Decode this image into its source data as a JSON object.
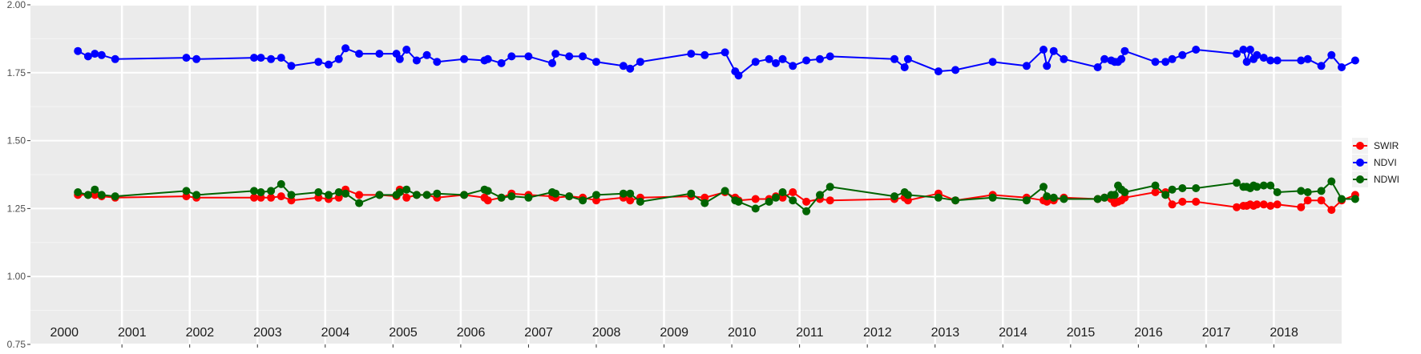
{
  "chart_data": {
    "type": "line",
    "x_unit": "decimal year",
    "ylim": [
      0.75,
      2.0
    ],
    "yticks": [
      0.75,
      1.0,
      1.25,
      1.5,
      1.75,
      2.0
    ],
    "ytick_labels": [
      "0.75",
      "1.00",
      "1.25",
      "1.50",
      "1.75",
      "2.00"
    ],
    "xlim": [
      1999.6,
      2018.95
    ],
    "year_boundaries": [
      2000.95,
      2001.95,
      2002.95,
      2003.95,
      2004.95,
      2005.95,
      2006.95,
      2007.95,
      2008.95,
      2009.95,
      2010.95,
      2011.95,
      2012.95,
      2013.95,
      2014.95,
      2015.95,
      2016.95,
      2017.95
    ],
    "year_labels": [
      {
        "label": "2000",
        "x": 2000.1
      },
      {
        "label": "2001",
        "x": 2001.1
      },
      {
        "label": "2002",
        "x": 2002.1
      },
      {
        "label": "2003",
        "x": 2003.1
      },
      {
        "label": "2004",
        "x": 2004.1
      },
      {
        "label": "2005",
        "x": 2005.1
      },
      {
        "label": "2006",
        "x": 2006.1
      },
      {
        "label": "2007",
        "x": 2007.1
      },
      {
        "label": "2008",
        "x": 2008.1
      },
      {
        "label": "2009",
        "x": 2009.1
      },
      {
        "label": "2010",
        "x": 2010.1
      },
      {
        "label": "2011",
        "x": 2011.1
      },
      {
        "label": "2012",
        "x": 2012.1
      },
      {
        "label": "2013",
        "x": 2013.1
      },
      {
        "label": "2014",
        "x": 2014.1
      },
      {
        "label": "2015",
        "x": 2015.1
      },
      {
        "label": "2016",
        "x": 2016.1
      },
      {
        "label": "2017",
        "x": 2017.1
      },
      {
        "label": "2018",
        "x": 2018.1
      }
    ],
    "grid": true,
    "legend_position": "right",
    "series": [
      {
        "name": "SWIR",
        "color": "#ff0000",
        "points": [
          [
            2000.3,
            1.3
          ],
          [
            2000.45,
            1.3
          ],
          [
            2000.55,
            1.3
          ],
          [
            2000.65,
            1.295
          ],
          [
            2000.85,
            1.29
          ],
          [
            2001.9,
            1.295
          ],
          [
            2002.05,
            1.29
          ],
          [
            2002.9,
            1.29
          ],
          [
            2003.0,
            1.29
          ],
          [
            2003.15,
            1.29
          ],
          [
            2003.3,
            1.295
          ],
          [
            2003.45,
            1.28
          ],
          [
            2003.85,
            1.29
          ],
          [
            2004.0,
            1.285
          ],
          [
            2004.15,
            1.29
          ],
          [
            2004.25,
            1.32
          ],
          [
            2004.45,
            1.3
          ],
          [
            2004.75,
            1.3
          ],
          [
            2005.0,
            1.295
          ],
          [
            2005.05,
            1.32
          ],
          [
            2005.15,
            1.29
          ],
          [
            2005.3,
            1.3
          ],
          [
            2005.45,
            1.3
          ],
          [
            2005.6,
            1.29
          ],
          [
            2006.0,
            1.3
          ],
          [
            2006.3,
            1.29
          ],
          [
            2006.35,
            1.28
          ],
          [
            2006.55,
            1.29
          ],
          [
            2006.7,
            1.305
          ],
          [
            2006.95,
            1.3
          ],
          [
            2007.3,
            1.295
          ],
          [
            2007.35,
            1.29
          ],
          [
            2007.55,
            1.295
          ],
          [
            2007.75,
            1.29
          ],
          [
            2007.95,
            1.28
          ],
          [
            2008.35,
            1.29
          ],
          [
            2008.45,
            1.28
          ],
          [
            2008.6,
            1.29
          ],
          [
            2009.35,
            1.295
          ],
          [
            2009.55,
            1.29
          ],
          [
            2009.85,
            1.31
          ],
          [
            2010.0,
            1.29
          ],
          [
            2010.05,
            1.28
          ],
          [
            2010.3,
            1.285
          ],
          [
            2010.5,
            1.285
          ],
          [
            2010.6,
            1.295
          ],
          [
            2010.7,
            1.29
          ],
          [
            2010.85,
            1.31
          ],
          [
            2011.05,
            1.275
          ],
          [
            2011.25,
            1.285
          ],
          [
            2011.4,
            1.28
          ],
          [
            2012.35,
            1.285
          ],
          [
            2012.5,
            1.29
          ],
          [
            2012.55,
            1.28
          ],
          [
            2013.0,
            1.305
          ],
          [
            2013.25,
            1.28
          ],
          [
            2013.8,
            1.3
          ],
          [
            2014.3,
            1.29
          ],
          [
            2014.55,
            1.28
          ],
          [
            2014.6,
            1.275
          ],
          [
            2014.7,
            1.28
          ],
          [
            2014.85,
            1.29
          ],
          [
            2015.35,
            1.285
          ],
          [
            2015.45,
            1.29
          ],
          [
            2015.55,
            1.285
          ],
          [
            2015.6,
            1.27
          ],
          [
            2015.65,
            1.275
          ],
          [
            2015.7,
            1.28
          ],
          [
            2015.75,
            1.29
          ],
          [
            2016.2,
            1.31
          ],
          [
            2016.35,
            1.31
          ],
          [
            2016.45,
            1.265
          ],
          [
            2016.6,
            1.275
          ],
          [
            2016.8,
            1.275
          ],
          [
            2017.4,
            1.255
          ],
          [
            2017.5,
            1.26
          ],
          [
            2017.55,
            1.26
          ],
          [
            2017.6,
            1.265
          ],
          [
            2017.65,
            1.26
          ],
          [
            2017.7,
            1.265
          ],
          [
            2017.8,
            1.265
          ],
          [
            2017.9,
            1.26
          ],
          [
            2018.0,
            1.265
          ],
          [
            2018.35,
            1.255
          ],
          [
            2018.45,
            1.28
          ],
          [
            2018.65,
            1.28
          ],
          [
            2018.8,
            1.245
          ],
          [
            2018.95,
            1.28
          ],
          [
            2019.15,
            1.3
          ]
        ]
      },
      {
        "name": "NDVI",
        "color": "#0000ff",
        "points": [
          [
            2000.3,
            1.83
          ],
          [
            2000.45,
            1.81
          ],
          [
            2000.55,
            1.82
          ],
          [
            2000.65,
            1.815
          ],
          [
            2000.85,
            1.8
          ],
          [
            2001.9,
            1.805
          ],
          [
            2002.05,
            1.8
          ],
          [
            2002.9,
            1.805
          ],
          [
            2003.0,
            1.805
          ],
          [
            2003.15,
            1.8
          ],
          [
            2003.3,
            1.805
          ],
          [
            2003.45,
            1.775
          ],
          [
            2003.85,
            1.79
          ],
          [
            2004.0,
            1.78
          ],
          [
            2004.15,
            1.8
          ],
          [
            2004.25,
            1.84
          ],
          [
            2004.45,
            1.82
          ],
          [
            2004.75,
            1.82
          ],
          [
            2005.0,
            1.82
          ],
          [
            2005.05,
            1.8
          ],
          [
            2005.15,
            1.835
          ],
          [
            2005.3,
            1.795
          ],
          [
            2005.45,
            1.815
          ],
          [
            2005.6,
            1.79
          ],
          [
            2006.0,
            1.8
          ],
          [
            2006.3,
            1.795
          ],
          [
            2006.35,
            1.8
          ],
          [
            2006.55,
            1.785
          ],
          [
            2006.7,
            1.81
          ],
          [
            2006.95,
            1.81
          ],
          [
            2007.3,
            1.785
          ],
          [
            2007.35,
            1.82
          ],
          [
            2007.55,
            1.81
          ],
          [
            2007.75,
            1.81
          ],
          [
            2007.95,
            1.79
          ],
          [
            2008.35,
            1.775
          ],
          [
            2008.45,
            1.765
          ],
          [
            2008.6,
            1.79
          ],
          [
            2009.35,
            1.82
          ],
          [
            2009.55,
            1.815
          ],
          [
            2009.85,
            1.825
          ],
          [
            2010.0,
            1.755
          ],
          [
            2010.05,
            1.74
          ],
          [
            2010.3,
            1.79
          ],
          [
            2010.5,
            1.8
          ],
          [
            2010.6,
            1.785
          ],
          [
            2010.7,
            1.8
          ],
          [
            2010.85,
            1.775
          ],
          [
            2011.05,
            1.795
          ],
          [
            2011.25,
            1.8
          ],
          [
            2011.4,
            1.81
          ],
          [
            2012.35,
            1.8
          ],
          [
            2012.5,
            1.77
          ],
          [
            2012.55,
            1.8
          ],
          [
            2013.0,
            1.755
          ],
          [
            2013.25,
            1.76
          ],
          [
            2013.8,
            1.79
          ],
          [
            2014.3,
            1.775
          ],
          [
            2014.55,
            1.835
          ],
          [
            2014.6,
            1.775
          ],
          [
            2014.7,
            1.83
          ],
          [
            2014.85,
            1.8
          ],
          [
            2015.35,
            1.77
          ],
          [
            2015.45,
            1.8
          ],
          [
            2015.55,
            1.795
          ],
          [
            2015.6,
            1.79
          ],
          [
            2015.65,
            1.79
          ],
          [
            2015.7,
            1.8
          ],
          [
            2015.75,
            1.83
          ],
          [
            2016.2,
            1.79
          ],
          [
            2016.35,
            1.79
          ],
          [
            2016.45,
            1.8
          ],
          [
            2016.6,
            1.815
          ],
          [
            2016.8,
            1.835
          ],
          [
            2017.4,
            1.82
          ],
          [
            2017.5,
            1.835
          ],
          [
            2017.55,
            1.79
          ],
          [
            2017.6,
            1.835
          ],
          [
            2017.65,
            1.8
          ],
          [
            2017.7,
            1.815
          ],
          [
            2017.8,
            1.805
          ],
          [
            2017.9,
            1.795
          ],
          [
            2018.0,
            1.795
          ],
          [
            2018.35,
            1.795
          ],
          [
            2018.45,
            1.8
          ],
          [
            2018.65,
            1.775
          ],
          [
            2018.8,
            1.815
          ],
          [
            2018.95,
            1.77
          ],
          [
            2019.15,
            1.795
          ]
        ]
      },
      {
        "name": "NDWI",
        "color": "#006400",
        "points": [
          [
            2000.3,
            1.31
          ],
          [
            2000.45,
            1.3
          ],
          [
            2000.55,
            1.32
          ],
          [
            2000.65,
            1.3
          ],
          [
            2000.85,
            1.295
          ],
          [
            2001.9,
            1.315
          ],
          [
            2002.05,
            1.3
          ],
          [
            2002.9,
            1.315
          ],
          [
            2003.0,
            1.31
          ],
          [
            2003.15,
            1.315
          ],
          [
            2003.3,
            1.34
          ],
          [
            2003.45,
            1.3
          ],
          [
            2003.85,
            1.31
          ],
          [
            2004.0,
            1.3
          ],
          [
            2004.15,
            1.31
          ],
          [
            2004.25,
            1.305
          ],
          [
            2004.45,
            1.27
          ],
          [
            2004.75,
            1.3
          ],
          [
            2005.0,
            1.3
          ],
          [
            2005.05,
            1.31
          ],
          [
            2005.15,
            1.32
          ],
          [
            2005.3,
            1.3
          ],
          [
            2005.45,
            1.3
          ],
          [
            2005.6,
            1.305
          ],
          [
            2006.0,
            1.3
          ],
          [
            2006.3,
            1.32
          ],
          [
            2006.35,
            1.315
          ],
          [
            2006.55,
            1.29
          ],
          [
            2006.7,
            1.295
          ],
          [
            2006.95,
            1.29
          ],
          [
            2007.3,
            1.31
          ],
          [
            2007.35,
            1.305
          ],
          [
            2007.55,
            1.295
          ],
          [
            2007.75,
            1.28
          ],
          [
            2007.95,
            1.3
          ],
          [
            2008.35,
            1.305
          ],
          [
            2008.45,
            1.305
          ],
          [
            2008.6,
            1.275
          ],
          [
            2009.35,
            1.305
          ],
          [
            2009.55,
            1.27
          ],
          [
            2009.85,
            1.315
          ],
          [
            2010.0,
            1.28
          ],
          [
            2010.05,
            1.275
          ],
          [
            2010.3,
            1.25
          ],
          [
            2010.5,
            1.275
          ],
          [
            2010.6,
            1.29
          ],
          [
            2010.7,
            1.31
          ],
          [
            2010.85,
            1.28
          ],
          [
            2011.05,
            1.24
          ],
          [
            2011.25,
            1.3
          ],
          [
            2011.4,
            1.33
          ],
          [
            2012.35,
            1.295
          ],
          [
            2012.5,
            1.31
          ],
          [
            2012.55,
            1.3
          ],
          [
            2013.0,
            1.29
          ],
          [
            2013.25,
            1.28
          ],
          [
            2013.8,
            1.29
          ],
          [
            2014.3,
            1.28
          ],
          [
            2014.55,
            1.33
          ],
          [
            2014.6,
            1.295
          ],
          [
            2014.7,
            1.29
          ],
          [
            2014.85,
            1.285
          ],
          [
            2015.35,
            1.285
          ],
          [
            2015.45,
            1.29
          ],
          [
            2015.55,
            1.3
          ],
          [
            2015.6,
            1.3
          ],
          [
            2015.65,
            1.335
          ],
          [
            2015.7,
            1.32
          ],
          [
            2015.75,
            1.31
          ],
          [
            2016.2,
            1.335
          ],
          [
            2016.35,
            1.3
          ],
          [
            2016.45,
            1.32
          ],
          [
            2016.6,
            1.325
          ],
          [
            2016.8,
            1.325
          ],
          [
            2017.4,
            1.345
          ],
          [
            2017.5,
            1.33
          ],
          [
            2017.55,
            1.33
          ],
          [
            2017.6,
            1.325
          ],
          [
            2017.65,
            1.335
          ],
          [
            2017.7,
            1.33
          ],
          [
            2017.8,
            1.335
          ],
          [
            2017.9,
            1.335
          ],
          [
            2018.0,
            1.31
          ],
          [
            2018.35,
            1.315
          ],
          [
            2018.45,
            1.31
          ],
          [
            2018.65,
            1.315
          ],
          [
            2018.8,
            1.35
          ],
          [
            2018.95,
            1.285
          ],
          [
            2019.15,
            1.285
          ]
        ]
      }
    ]
  }
}
